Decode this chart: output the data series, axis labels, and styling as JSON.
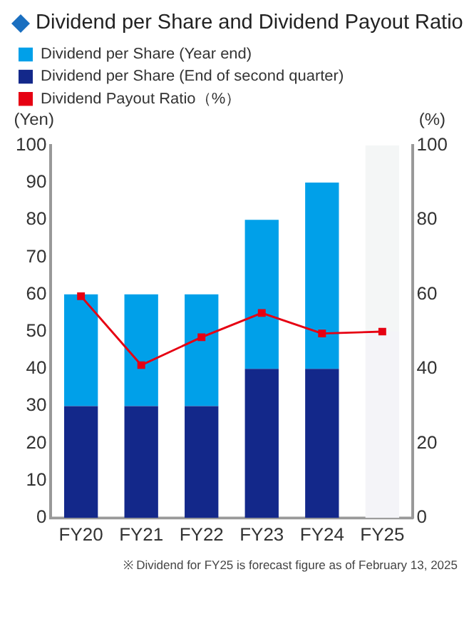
{
  "chart_data": {
    "type": "bar",
    "title": "Dividend per Share and Dividend Payout Ratio",
    "categories": [
      "FY20",
      "FY21",
      "FY22",
      "FY23",
      "FY24",
      "FY25"
    ],
    "stacked": true,
    "ylabel": "(Yen)",
    "y2label": "(%)",
    "ylim": [
      0,
      100
    ],
    "yticks": [
      0,
      10,
      20,
      30,
      40,
      50,
      60,
      70,
      80,
      90,
      100
    ],
    "y2lim": [
      0,
      100
    ],
    "y2ticks": [
      0,
      20,
      40,
      60,
      80,
      100
    ],
    "legend": "top",
    "grid": false,
    "marker": "square",
    "annotations": [
      "※ Dividend for FY25 is  forecast figure as of February 13, 2025"
    ],
    "series": [
      {
        "name": "Dividend per Share (End of second quarter)",
        "color": "#13288a",
        "colors": [
          "#13288a",
          "#13288a",
          "#13288a",
          "#13288a",
          "#13288a",
          "#f4f4f8"
        ],
        "values": [
          30,
          30,
          30,
          40,
          40,
          50
        ]
      },
      {
        "name": "Dividend per Share (Year end)",
        "color": "#00a0e9",
        "colors": [
          "#00a0e9",
          "#00a0e9",
          "#00a0e9",
          "#00a0e9",
          "#00a0e9",
          "#f4f6f6"
        ],
        "values": [
          30,
          30,
          30,
          40,
          50,
          50
        ]
      },
      {
        "name": "Dividend Payout Ratio（%）",
        "type": "line",
        "axis": "y2",
        "color": "#e60012",
        "values": [
          59.5,
          41,
          48.5,
          55,
          49.5,
          50
        ]
      }
    ]
  }
}
